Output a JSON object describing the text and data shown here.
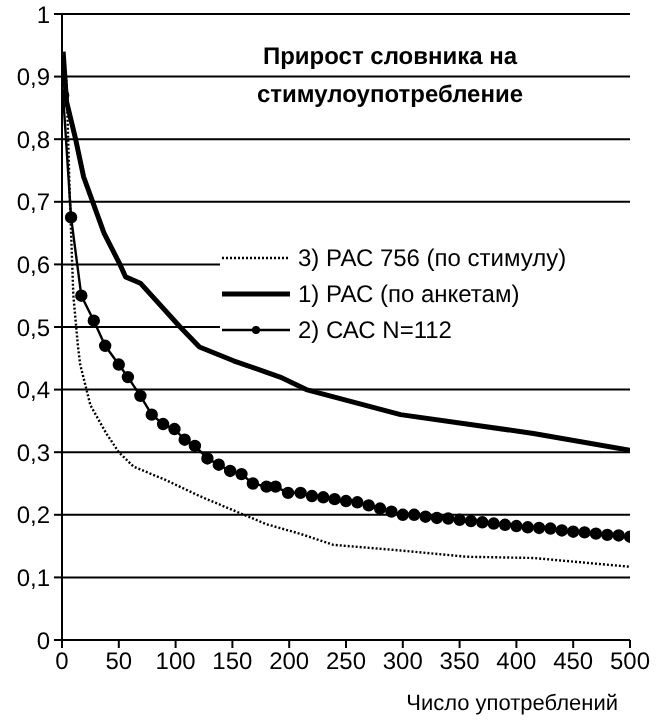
{
  "chart_data": {
    "type": "line",
    "title": "Прирост словника на стимулоупотребление",
    "xlabel": "Число употреблений",
    "xlim": [
      0,
      500
    ],
    "xticks": [
      0,
      50,
      100,
      150,
      200,
      250,
      300,
      350,
      400,
      450,
      500
    ],
    "ylim": [
      0,
      1
    ],
    "yticks": [
      0,
      {
        "value": 0.1,
        "label": "0,1"
      },
      {
        "value": 0.2,
        "label": "0,2"
      },
      {
        "value": 0.3,
        "label": "0,3"
      },
      {
        "value": 0.4,
        "label": "0,4"
      },
      {
        "value": 0.5,
        "label": "0,5"
      },
      {
        "value": 0.6,
        "label": "0,6"
      },
      {
        "value": 0.7,
        "label": "0,7"
      },
      {
        "value": 0.8,
        "label": "0,8"
      },
      {
        "value": 0.9,
        "label": "0,9"
      },
      1
    ],
    "grid": "y",
    "legend": "right",
    "series": [
      {
        "name": "3) РАС 756 (по стимулу)",
        "color": "#000000",
        "line_style": "dotted",
        "marker": "none",
        "x": [
          1,
          4,
          7,
          10,
          14,
          16,
          25,
          39,
          50,
          63,
          92,
          121,
          151,
          180,
          209,
          239,
          298,
          356,
          415,
          500
        ],
        "values": [
          0.92,
          0.89,
          0.7,
          0.55,
          0.47,
          0.44,
          0.375,
          0.33,
          0.3,
          0.277,
          0.255,
          0.23,
          0.207,
          0.185,
          0.17,
          0.152,
          0.143,
          0.133,
          0.131,
          0.117
        ]
      },
      {
        "name": "1) РАС (по анкетам)",
        "color": "#000000",
        "line_style": "solid",
        "marker": "none",
        "x": [
          1,
          4,
          12,
          19,
          37,
          51,
          56,
          69,
          104,
          121,
          151,
          192,
          215,
          298,
          415,
          500
        ],
        "values": [
          0.94,
          0.86,
          0.8,
          0.74,
          0.65,
          0.6,
          0.58,
          0.57,
          0.5,
          0.468,
          0.446,
          0.42,
          0.4,
          0.36,
          0.33,
          0.303
        ]
      },
      {
        "name": "2) САС N=112",
        "color": "#000000",
        "line_style": "solid",
        "marker": "circle",
        "x": [
          1,
          8,
          17,
          28,
          38,
          50,
          58,
          69,
          79,
          89,
          99,
          108,
          117,
          128,
          138,
          148,
          158,
          168,
          180,
          188,
          199,
          210,
          220,
          230,
          240,
          250,
          260,
          270,
          280,
          290,
          300,
          310,
          320,
          330,
          340,
          350,
          360,
          370,
          380,
          390,
          400,
          410,
          420,
          430,
          440,
          450,
          460,
          470,
          480,
          490,
          500
        ],
        "values": [
          0.87,
          0.675,
          0.55,
          0.51,
          0.47,
          0.44,
          0.42,
          0.39,
          0.36,
          0.345,
          0.337,
          0.32,
          0.31,
          0.29,
          0.28,
          0.27,
          0.265,
          0.25,
          0.245,
          0.245,
          0.235,
          0.235,
          0.23,
          0.228,
          0.225,
          0.222,
          0.22,
          0.215,
          0.21,
          0.205,
          0.2,
          0.2,
          0.197,
          0.195,
          0.194,
          0.192,
          0.19,
          0.188,
          0.186,
          0.184,
          0.182,
          0.18,
          0.179,
          0.178,
          0.175,
          0.173,
          0.172,
          0.17,
          0.168,
          0.167,
          0.165
        ]
      }
    ]
  }
}
